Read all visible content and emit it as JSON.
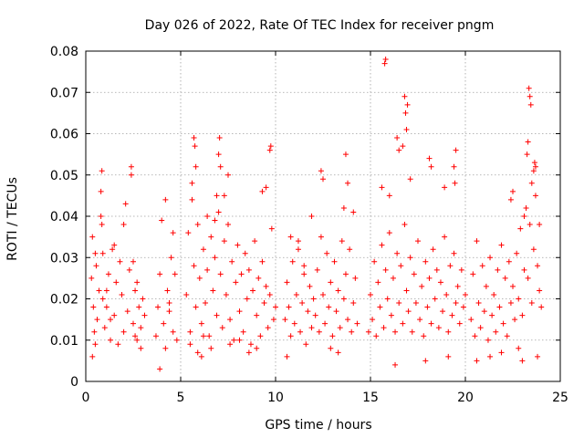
{
  "chart_data": {
    "type": "scatter",
    "title": "Day 026 of 2022, Rate Of TEC Index for receiver pngm",
    "xlabel": "GPS time / hours",
    "ylabel": "ROTI / TECUs",
    "xlim": [
      0,
      25
    ],
    "ylim": [
      0,
      0.08
    ],
    "xticks": [
      0,
      5,
      10,
      15,
      20,
      25
    ],
    "xtick_labels": [
      "0",
      "5",
      "10",
      "15",
      "20",
      "25"
    ],
    "yticks": [
      0,
      0.01,
      0.02,
      0.03,
      0.04,
      0.05,
      0.06,
      0.07,
      0.08
    ],
    "ytick_labels": [
      "0",
      "0.01",
      "0.02",
      "0.03",
      "0.04",
      "0.05",
      "0.06",
      "0.07",
      "0.08"
    ],
    "grid": true,
    "marker": "+",
    "marker_color": "#ff0000",
    "series": [
      {
        "name": "ROTI",
        "x": [
          0.3,
          0.35,
          0.4,
          0.45,
          0.5,
          0.55,
          0.6,
          0.7,
          0.8,
          0.85,
          0.9,
          1.0,
          1.1,
          1.2,
          1.3,
          1.4,
          1.5,
          1.6,
          1.7,
          1.8,
          1.9,
          2.0,
          2.1,
          2.2,
          2.3,
          2.4,
          2.5,
          2.6,
          2.7,
          2.8,
          2.9,
          3.0,
          3.1,
          0.8,
          0.85,
          1.5,
          2.0,
          2.4,
          2.5,
          2.6,
          0.35,
          0.5,
          2.7,
          2.9,
          1.1,
          1.3,
          0.9,
          3.7,
          3.8,
          3.9,
          4.0,
          4.1,
          4.2,
          4.3,
          4.4,
          4.5,
          4.6,
          4.7,
          4.8,
          3.9,
          4.2,
          4.4,
          4.6,
          5.3,
          5.4,
          5.5,
          5.6,
          5.7,
          5.8,
          5.9,
          6.0,
          6.1,
          6.2,
          6.3,
          6.4,
          6.5,
          6.6,
          6.7,
          6.8,
          6.9,
          7.0,
          7.1,
          7.2,
          7.3,
          7.4,
          7.5,
          7.6,
          7.7,
          7.8,
          7.9,
          8.0,
          8.1,
          8.2,
          8.3,
          8.4,
          8.5,
          8.6,
          8.7,
          8.8,
          8.9,
          9.0,
          9.1,
          9.2,
          9.3,
          9.4,
          9.5,
          9.6,
          9.7,
          9.8,
          9.9,
          10.0,
          5.7,
          5.75,
          5.8,
          6.9,
          7.0,
          7.05,
          7.1,
          9.7,
          9.75,
          5.6,
          6.4,
          6.8,
          7.3,
          7.5,
          9.3,
          9.5,
          5.9,
          6.1,
          6.6,
          7.6,
          8.1,
          8.6,
          5.5,
          6.2,
          9.0,
          10.5,
          10.6,
          10.7,
          10.8,
          10.9,
          11.0,
          11.1,
          11.2,
          11.3,
          11.4,
          11.5,
          11.6,
          11.7,
          11.8,
          11.9,
          12.0,
          10.8,
          11.2,
          11.5,
          11.9,
          10.6,
          12.1,
          12.2,
          12.3,
          12.4,
          12.5,
          12.6,
          12.7,
          12.8,
          12.9,
          13.0,
          13.1,
          13.2,
          13.3,
          13.4,
          13.5,
          13.6,
          13.7,
          13.8,
          13.9,
          14.0,
          14.1,
          14.2,
          14.3,
          12.4,
          12.5,
          13.7,
          13.8,
          13.6,
          14.1,
          12.9,
          13.3,
          14.9,
          15.0,
          15.1,
          15.2,
          15.3,
          15.4,
          15.5,
          15.6,
          15.7,
          15.8,
          15.9,
          16.0,
          16.1,
          16.2,
          16.3,
          16.4,
          16.5,
          16.6,
          16.7,
          16.8,
          16.9,
          17.0,
          17.1,
          17.2,
          17.3,
          17.4,
          17.5,
          17.6,
          17.7,
          17.8,
          17.9,
          18.0,
          18.1,
          18.2,
          18.3,
          18.4,
          18.5,
          18.6,
          18.7,
          18.8,
          18.9,
          19.0,
          19.1,
          19.2,
          19.3,
          19.4,
          19.5,
          19.6,
          19.7,
          19.8,
          19.9,
          20.0,
          15.75,
          15.8,
          16.8,
          16.85,
          16.9,
          16.95,
          16.7,
          16.4,
          16.5,
          17.1,
          18.1,
          18.2,
          19.4,
          19.5,
          19.45,
          18.9,
          16.3,
          17.9,
          19.1,
          15.6,
          16.0,
          20.3,
          20.4,
          20.5,
          20.6,
          20.7,
          20.8,
          20.9,
          21.0,
          21.1,
          21.2,
          21.3,
          21.4,
          21.5,
          21.6,
          21.7,
          21.8,
          21.9,
          22.0,
          22.1,
          22.2,
          22.3,
          22.4,
          22.5,
          22.6,
          22.7,
          22.8,
          22.9,
          23.0,
          23.1,
          23.2,
          23.3,
          23.4,
          23.5,
          23.6,
          23.7,
          23.8,
          23.9,
          24.0,
          23.35,
          23.4,
          23.45,
          23.3,
          23.25,
          23.6,
          23.65,
          23.7,
          23.5,
          22.5,
          22.4,
          23.1,
          23.9,
          20.6,
          21.3,
          21.9,
          22.8,
          23.0,
          23.8
        ],
        "y": [
          0.025,
          0.035,
          0.018,
          0.012,
          0.009,
          0.028,
          0.015,
          0.022,
          0.04,
          0.051,
          0.031,
          0.013,
          0.018,
          0.026,
          0.01,
          0.032,
          0.016,
          0.024,
          0.009,
          0.029,
          0.021,
          0.012,
          0.043,
          0.017,
          0.027,
          0.05,
          0.014,
          0.022,
          0.01,
          0.018,
          0.013,
          0.02,
          0.016,
          0.046,
          0.038,
          0.033,
          0.038,
          0.052,
          0.029,
          0.011,
          0.006,
          0.031,
          0.024,
          0.008,
          0.022,
          0.015,
          0.02,
          0.011,
          0.018,
          0.026,
          0.039,
          0.014,
          0.008,
          0.022,
          0.017,
          0.03,
          0.012,
          0.026,
          0.01,
          0.003,
          0.044,
          0.019,
          0.036,
          0.021,
          0.036,
          0.012,
          0.048,
          0.028,
          0.018,
          0.038,
          0.025,
          0.014,
          0.032,
          0.019,
          0.027,
          0.011,
          0.035,
          0.022,
          0.03,
          0.016,
          0.041,
          0.026,
          0.013,
          0.034,
          0.021,
          0.038,
          0.015,
          0.029,
          0.01,
          0.024,
          0.033,
          0.017,
          0.026,
          0.012,
          0.031,
          0.02,
          0.027,
          0.009,
          0.022,
          0.034,
          0.016,
          0.025,
          0.011,
          0.029,
          0.019,
          0.023,
          0.013,
          0.021,
          0.037,
          0.015,
          0.018,
          0.059,
          0.057,
          0.052,
          0.045,
          0.055,
          0.059,
          0.052,
          0.056,
          0.057,
          0.044,
          0.04,
          0.039,
          0.045,
          0.05,
          0.046,
          0.047,
          0.007,
          0.006,
          0.008,
          0.009,
          0.01,
          0.007,
          0.009,
          0.011,
          0.008,
          0.015,
          0.024,
          0.018,
          0.011,
          0.029,
          0.014,
          0.021,
          0.034,
          0.012,
          0.019,
          0.026,
          0.009,
          0.017,
          0.023,
          0.013,
          0.02,
          0.035,
          0.032,
          0.028,
          0.04,
          0.006,
          0.016,
          0.027,
          0.012,
          0.035,
          0.021,
          0.014,
          0.031,
          0.018,
          0.024,
          0.011,
          0.029,
          0.017,
          0.022,
          0.013,
          0.034,
          0.02,
          0.026,
          0.015,
          0.032,
          0.012,
          0.019,
          0.025,
          0.014,
          0.051,
          0.049,
          0.055,
          0.048,
          0.042,
          0.041,
          0.008,
          0.007,
          0.012,
          0.021,
          0.015,
          0.029,
          0.011,
          0.024,
          0.018,
          0.033,
          0.013,
          0.027,
          0.02,
          0.036,
          0.016,
          0.025,
          0.012,
          0.031,
          0.019,
          0.028,
          0.014,
          0.038,
          0.022,
          0.017,
          0.03,
          0.012,
          0.026,
          0.019,
          0.034,
          0.015,
          0.023,
          0.011,
          0.029,
          0.018,
          0.025,
          0.014,
          0.032,
          0.02,
          0.027,
          0.013,
          0.024,
          0.017,
          0.035,
          0.021,
          0.012,
          0.028,
          0.016,
          0.031,
          0.019,
          0.023,
          0.014,
          0.027,
          0.018,
          0.021,
          0.077,
          0.078,
          0.069,
          0.065,
          0.061,
          0.067,
          0.057,
          0.059,
          0.056,
          0.049,
          0.054,
          0.052,
          0.052,
          0.056,
          0.048,
          0.047,
          0.004,
          0.005,
          0.006,
          0.047,
          0.045,
          0.015,
          0.026,
          0.011,
          0.034,
          0.019,
          0.013,
          0.028,
          0.017,
          0.023,
          0.01,
          0.03,
          0.016,
          0.021,
          0.012,
          0.027,
          0.018,
          0.033,
          0.014,
          0.025,
          0.011,
          0.029,
          0.019,
          0.023,
          0.015,
          0.031,
          0.02,
          0.037,
          0.016,
          0.027,
          0.042,
          0.025,
          0.038,
          0.019,
          0.032,
          0.045,
          0.028,
          0.022,
          0.018,
          0.071,
          0.069,
          0.067,
          0.058,
          0.055,
          0.051,
          0.053,
          0.052,
          0.048,
          0.046,
          0.044,
          0.04,
          0.038,
          0.005,
          0.006,
          0.007,
          0.008,
          0.005,
          0.006
        ]
      }
    ]
  }
}
